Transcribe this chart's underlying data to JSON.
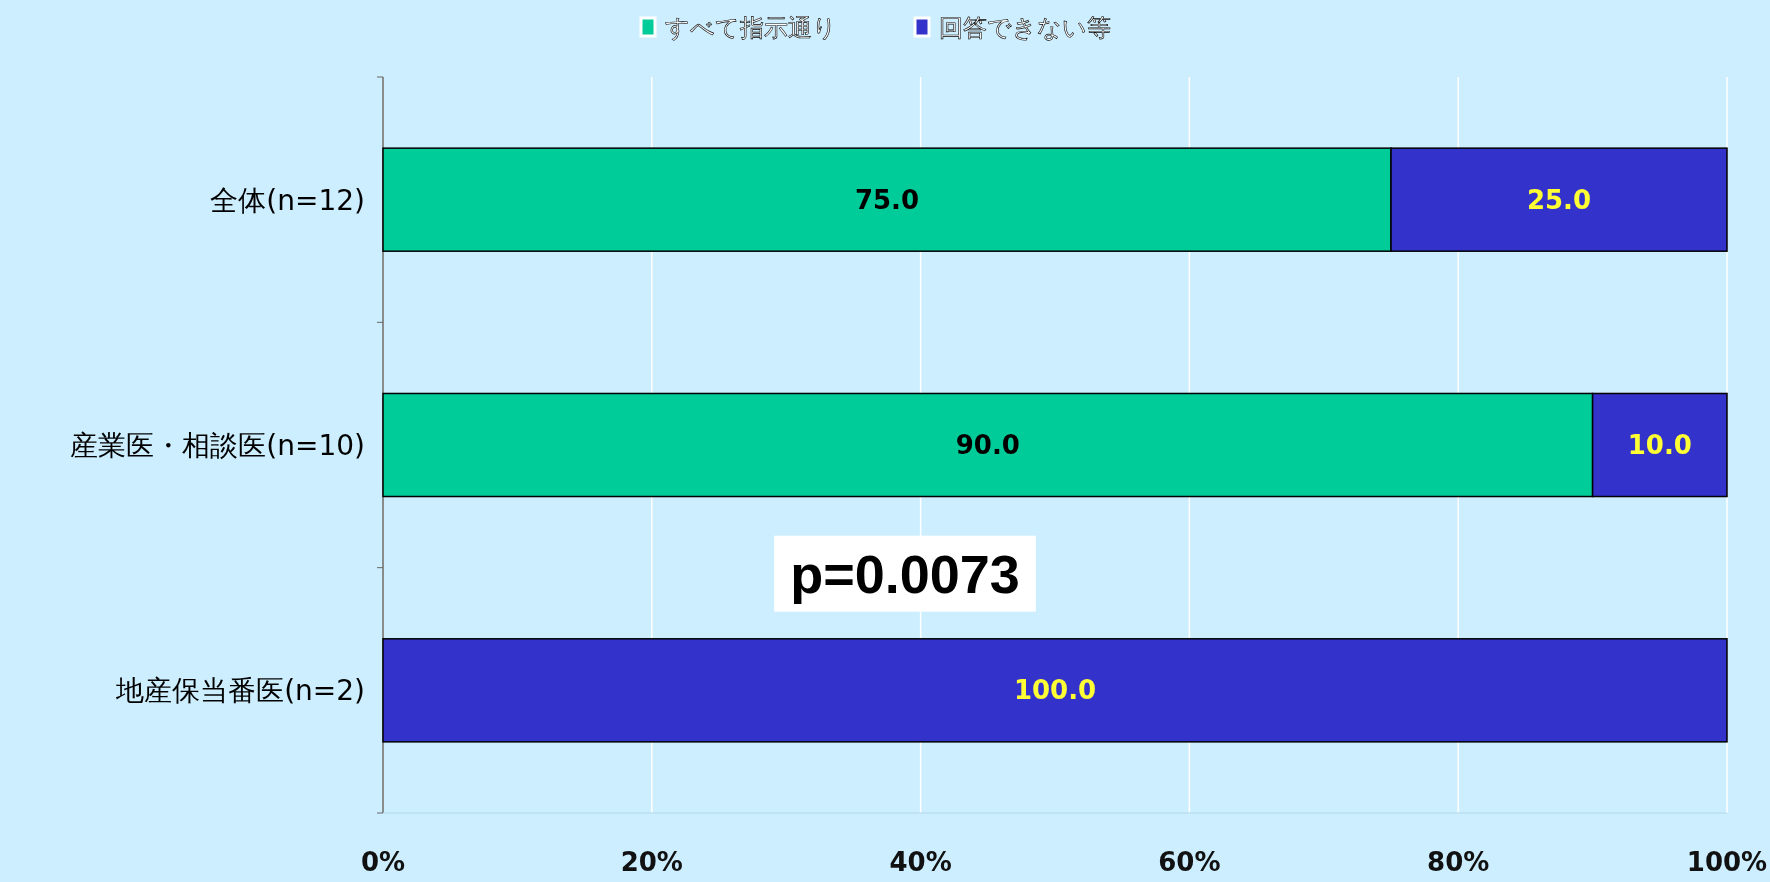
{
  "chart_data": {
    "type": "bar",
    "orientation": "horizontal",
    "stacked": true,
    "categories": [
      "全体(n=12)",
      "産業医・相談医(n=10)",
      "地産保当番医(n=2)"
    ],
    "series": [
      {
        "name": "すべて指示通り",
        "color": "#00cc99",
        "values": [
          75.0,
          90.0,
          0
        ],
        "value_labels": [
          "75.0",
          "90.0",
          null
        ]
      },
      {
        "name": "回答できない等",
        "color": "#3333cc",
        "values": [
          25.0,
          10.0,
          100.0
        ],
        "value_labels": [
          "25.0",
          "10.0",
          "100.0"
        ]
      }
    ],
    "xlim": [
      0,
      100
    ],
    "xticks": [
      {
        "value": 0,
        "label": "0%"
      },
      {
        "value": 20,
        "label": "20%"
      },
      {
        "value": 40,
        "label": "40%"
      },
      {
        "value": 60,
        "label": "60%"
      },
      {
        "value": 80,
        "label": "80%"
      },
      {
        "value": 100,
        "label": "100%"
      }
    ],
    "grid": "x",
    "legend": "top",
    "annotations": [
      "p=0.0073"
    ]
  }
}
